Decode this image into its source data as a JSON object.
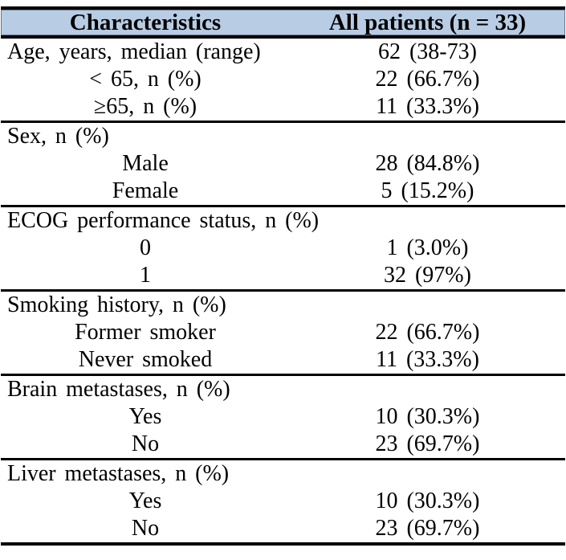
{
  "table": {
    "header": {
      "characteristics": "Characteristics",
      "all_patients": "All patients (n = 33)"
    },
    "colors": {
      "header_bg": "#b8cce4",
      "rule": "#000000",
      "text": "#000000"
    },
    "sections": [
      {
        "rows": [
          {
            "label": "Age, years, median (range)",
            "value": "62 (38-73)"
          },
          {
            "label": "< 65, n (%)",
            "value": "22 (66.7%)"
          },
          {
            "label": "≥65, n (%)",
            "value": "11 (33.3%)"
          }
        ]
      },
      {
        "rows": [
          {
            "label": "Sex, n (%)",
            "value": ""
          },
          {
            "label": "Male",
            "value": "28 (84.8%)"
          },
          {
            "label": "Female",
            "value": "5 (15.2%)"
          }
        ]
      },
      {
        "rows": [
          {
            "label": "ECOG performance status, n (%)",
            "value": ""
          },
          {
            "label": "0",
            "value": "1 (3.0%)"
          },
          {
            "label": "1",
            "value": "32 (97%)"
          }
        ]
      },
      {
        "rows": [
          {
            "label": "Smoking history, n (%)",
            "value": ""
          },
          {
            "label": "Former smoker",
            "value": "22 (66.7%)"
          },
          {
            "label": "Never smoked",
            "value": "11 (33.3%)"
          }
        ]
      },
      {
        "rows": [
          {
            "label": "Brain metastases, n (%)",
            "value": ""
          },
          {
            "label": "Yes",
            "value": "10 (30.3%)"
          },
          {
            "label": "No",
            "value": "23 (69.7%)"
          }
        ]
      },
      {
        "rows": [
          {
            "label": "Liver metastases, n (%)",
            "value": ""
          },
          {
            "label": "Yes",
            "value": "10 (30.3%)"
          },
          {
            "label": "No",
            "value": "23 (69.7%)"
          }
        ]
      }
    ]
  }
}
